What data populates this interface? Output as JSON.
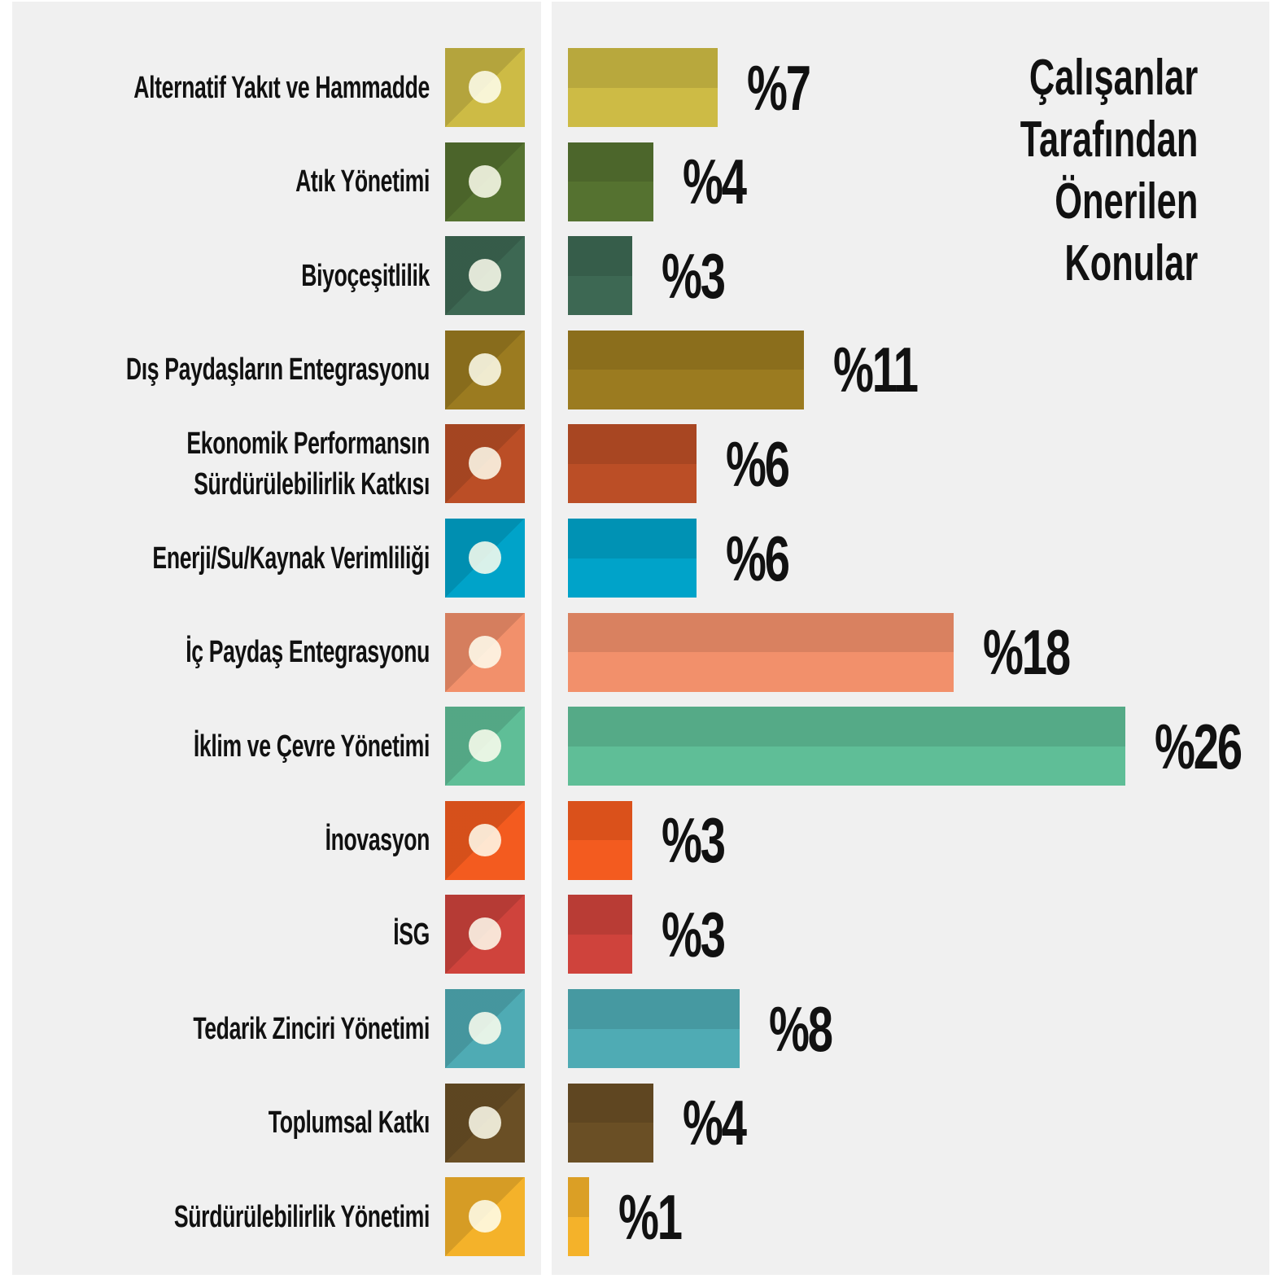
{
  "chart_data": {
    "type": "bar",
    "title": "Çalışanlar Tarafından Önerilen Konular",
    "categories": [
      "Alternatif Yakıt ve Hammadde",
      "Atık Yönetimi",
      "Biyoçeşitlilik",
      "Dış Paydaşların Entegrasyonu",
      "Ekonomik Performansın Sürdürülebilirlik Katkısı",
      "Enerji/Su/Kaynak Verimliliği",
      "İç Paydaş Entegrasyonu",
      "İklim ve Çevre Yönetimi",
      "İnovasyon",
      "İSG",
      "Tedarik Zinciri Yönetimi",
      "Toplumsal Katkı",
      "Sürdürülebilirlik Yönetimi"
    ],
    "values": [
      7,
      4,
      3,
      11,
      6,
      6,
      18,
      26,
      3,
      3,
      8,
      4,
      1
    ],
    "value_labels": [
      "%7",
      "%4",
      "%3",
      "%11",
      "%6",
      "%6",
      "%18",
      "%26",
      "%3",
      "%3",
      "%8",
      "%4",
      "%1"
    ],
    "colors": [
      "#cdbb45",
      "#557230",
      "#3d6853",
      "#9b7b20",
      "#bb4e26",
      "#00a3c9",
      "#f2906b",
      "#5fbe97",
      "#f35b1f",
      "#cf433c",
      "#4fabb4",
      "#6a4f25",
      "#f4b22a"
    ]
  }
}
